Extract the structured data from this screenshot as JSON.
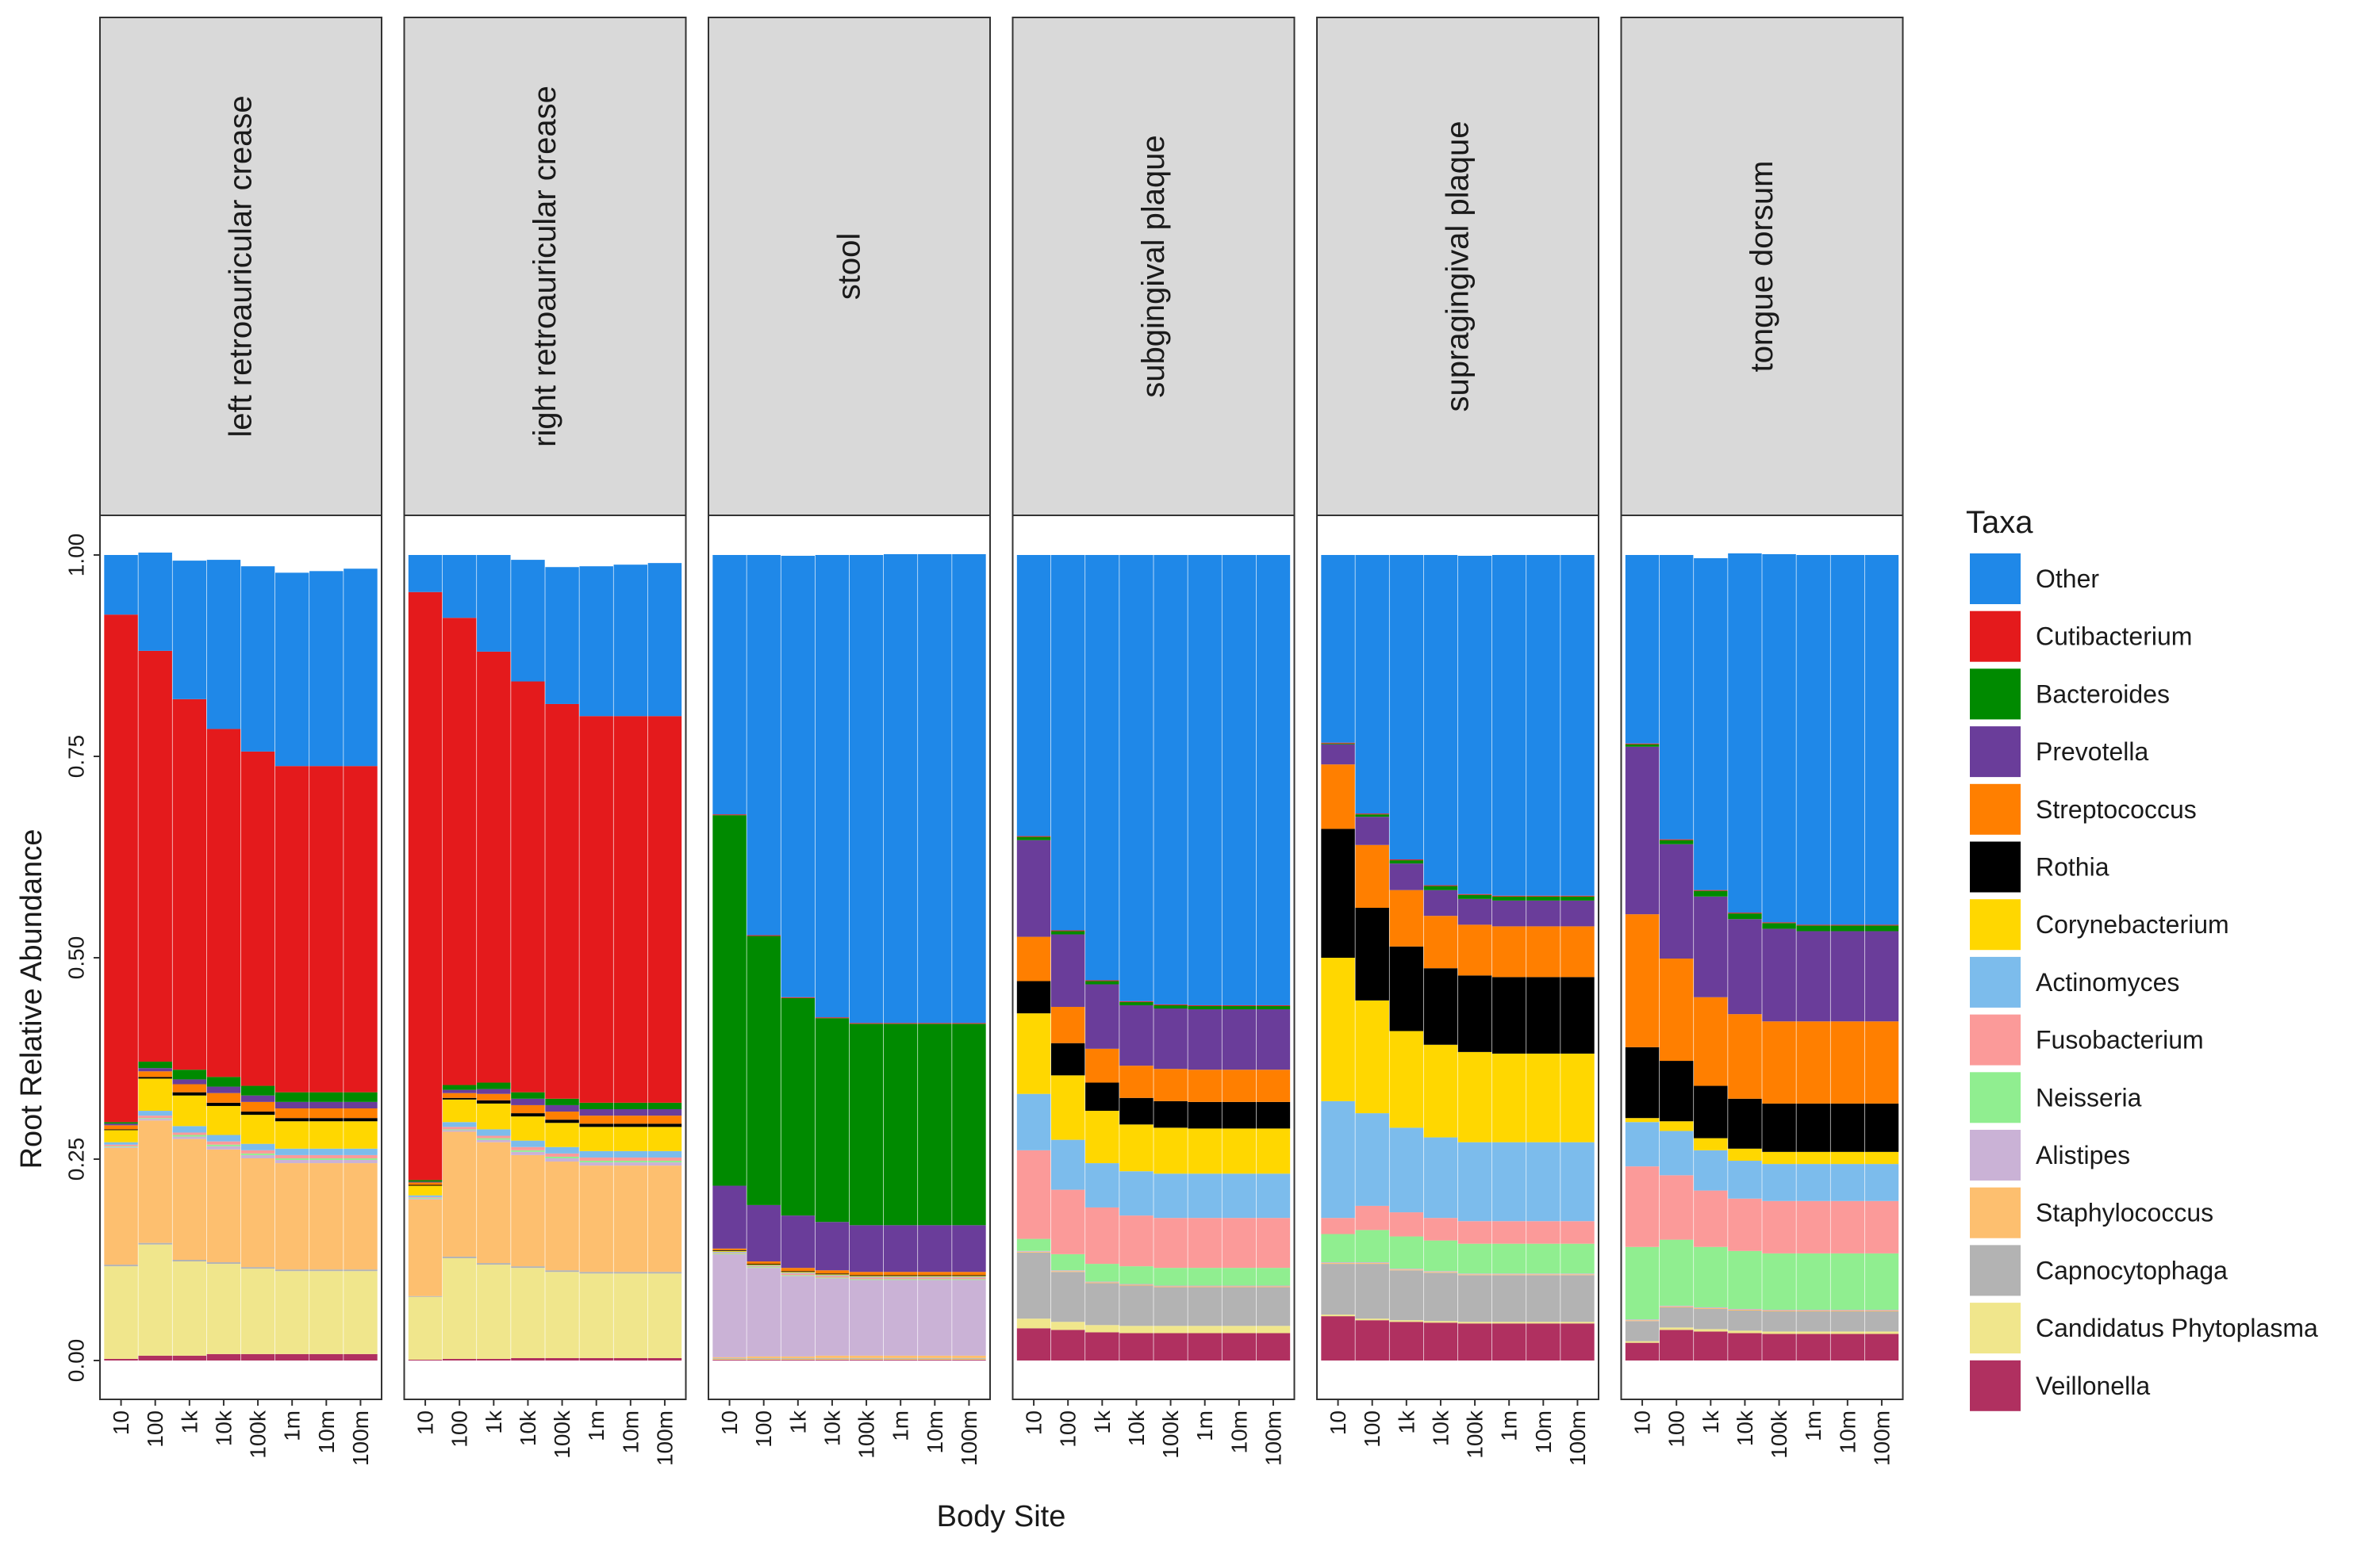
{
  "chart_data": {
    "type": "bar",
    "stacked": true,
    "facet_by": "body site",
    "xlabel": "Body Site",
    "ylabel": "Root Relative Abundance",
    "ylim": [
      0,
      1
    ],
    "y_ticks": [
      "0.00",
      "0.25",
      "0.50",
      "0.75",
      "1.00"
    ],
    "grid": false,
    "legend_title": "Taxa",
    "legend_position": "right",
    "categories": [
      "10",
      "100",
      "1k",
      "10k",
      "100k",
      "1m",
      "10m",
      "100m"
    ],
    "taxa": [
      {
        "name": "Other",
        "color": "#1f88e8"
      },
      {
        "name": "Cutibacterium",
        "color": "#e41a1c"
      },
      {
        "name": "Bacteroides",
        "color": "#008a00"
      },
      {
        "name": "Prevotella",
        "color": "#6a3d9a"
      },
      {
        "name": "Streptococcus",
        "color": "#ff7f00"
      },
      {
        "name": "Rothia",
        "color": "#000000"
      },
      {
        "name": "Corynebacterium",
        "color": "#ffd700"
      },
      {
        "name": "Actinomyces",
        "color": "#7cbcec"
      },
      {
        "name": "Fusobacterium",
        "color": "#fb9a99"
      },
      {
        "name": "Neisseria",
        "color": "#90ee90"
      },
      {
        "name": "Alistipes",
        "color": "#cab2d6"
      },
      {
        "name": "Staphylococcus",
        "color": "#fdbf6f"
      },
      {
        "name": "Capnocytophaga",
        "color": "#b3b3b3"
      },
      {
        "name": "Candidatus Phytoplasma",
        "color": "#f0e68c"
      },
      {
        "name": "Veillonella",
        "color": "#b03060"
      }
    ],
    "stack_order_bottom_to_top": [
      "Veillonella",
      "Candidatus Phytoplasma",
      "Capnocytophaga",
      "Staphylococcus",
      "Alistipes",
      "Neisseria",
      "Fusobacterium",
      "Actinomyces",
      "Corynebacterium",
      "Rothia",
      "Streptococcus",
      "Prevotella",
      "Bacteroides",
      "Cutibacterium",
      "Other"
    ],
    "facets": [
      {
        "title": "left retroauricular crease",
        "series": {
          "Veillonella": [
            0.002,
            0.006,
            0.006,
            0.008,
            0.008,
            0.008,
            0.008,
            0.008
          ],
          "Candidatus Phytoplasma": [
            0.115,
            0.138,
            0.117,
            0.112,
            0.106,
            0.103,
            0.103,
            0.103
          ],
          "Capnocytophaga": [
            0.002,
            0.002,
            0.002,
            0.002,
            0.002,
            0.002,
            0.002,
            0.002
          ],
          "Staphylococcus": [
            0.145,
            0.152,
            0.15,
            0.14,
            0.135,
            0.132,
            0.132,
            0.132
          ],
          "Alistipes": [
            0.001,
            0.002,
            0.003,
            0.004,
            0.004,
            0.004,
            0.004,
            0.004
          ],
          "Neisseria": [
            0.001,
            0.001,
            0.002,
            0.002,
            0.002,
            0.002,
            0.002,
            0.002
          ],
          "Fusobacterium": [
            0.002,
            0.003,
            0.003,
            0.004,
            0.004,
            0.004,
            0.004,
            0.004
          ],
          "Actinomyces": [
            0.003,
            0.006,
            0.008,
            0.008,
            0.008,
            0.008,
            0.008,
            0.008
          ],
          "Corynebacterium": [
            0.015,
            0.04,
            0.038,
            0.036,
            0.036,
            0.034,
            0.034,
            0.034
          ],
          "Rothia": [
            0.001,
            0.002,
            0.004,
            0.004,
            0.004,
            0.004,
            0.004,
            0.004
          ],
          "Streptococcus": [
            0.005,
            0.007,
            0.01,
            0.012,
            0.012,
            0.012,
            0.012,
            0.012
          ],
          "Prevotella": [
            0.002,
            0.004,
            0.006,
            0.008,
            0.008,
            0.008,
            0.008,
            0.008
          ],
          "Bacteroides": [
            0.002,
            0.008,
            0.012,
            0.012,
            0.012,
            0.012,
            0.012,
            0.012
          ],
          "Cutibacterium": [
            0.63,
            0.51,
            0.46,
            0.432,
            0.415,
            0.405,
            0.405,
            0.405
          ],
          "Other": [
            0.074,
            0.122,
            0.172,
            0.21,
            0.23,
            0.24,
            0.242,
            0.245
          ]
        }
      },
      {
        "title": "right retroauricular crease",
        "series": {
          "Veillonella": [
            0.001,
            0.002,
            0.002,
            0.003,
            0.003,
            0.003,
            0.003,
            0.003
          ],
          "Candidatus Phytoplasma": [
            0.078,
            0.125,
            0.117,
            0.112,
            0.107,
            0.105,
            0.105,
            0.105
          ],
          "Capnocytophaga": [
            0.001,
            0.002,
            0.002,
            0.002,
            0.002,
            0.002,
            0.002,
            0.002
          ],
          "Staphylococcus": [
            0.12,
            0.155,
            0.15,
            0.138,
            0.135,
            0.132,
            0.132,
            0.132
          ],
          "Alistipes": [
            0.001,
            0.002,
            0.003,
            0.004,
            0.004,
            0.004,
            0.004,
            0.004
          ],
          "Neisseria": [
            0.001,
            0.001,
            0.002,
            0.002,
            0.002,
            0.002,
            0.002,
            0.002
          ],
          "Fusobacterium": [
            0.001,
            0.003,
            0.003,
            0.004,
            0.004,
            0.004,
            0.004,
            0.004
          ],
          "Actinomyces": [
            0.002,
            0.006,
            0.008,
            0.008,
            0.008,
            0.008,
            0.008,
            0.008
          ],
          "Corynebacterium": [
            0.012,
            0.028,
            0.032,
            0.03,
            0.03,
            0.03,
            0.03,
            0.03
          ],
          "Rothia": [
            0.001,
            0.002,
            0.004,
            0.004,
            0.004,
            0.004,
            0.004,
            0.004
          ],
          "Streptococcus": [
            0.003,
            0.006,
            0.008,
            0.01,
            0.01,
            0.01,
            0.01,
            0.01
          ],
          "Prevotella": [
            0.001,
            0.004,
            0.006,
            0.008,
            0.008,
            0.008,
            0.008,
            0.008
          ],
          "Bacteroides": [
            0.002,
            0.006,
            0.008,
            0.008,
            0.008,
            0.008,
            0.008,
            0.008
          ],
          "Cutibacterium": [
            0.73,
            0.58,
            0.535,
            0.51,
            0.49,
            0.48,
            0.48,
            0.48
          ],
          "Other": [
            0.046,
            0.078,
            0.12,
            0.151,
            0.17,
            0.186,
            0.188,
            0.19
          ]
        }
      },
      {
        "title": "stool",
        "series": {
          "Veillonella": [
            0.001,
            0.001,
            0.001,
            0.001,
            0.001,
            0.001,
            0.001,
            0.001
          ],
          "Candidatus Phytoplasma": [
            0.001,
            0.001,
            0.001,
            0.001,
            0.001,
            0.001,
            0.001,
            0.001
          ],
          "Capnocytophaga": [
            0.001,
            0.001,
            0.001,
            0.001,
            0.001,
            0.001,
            0.001,
            0.001
          ],
          "Staphylococcus": [
            0.001,
            0.002,
            0.002,
            0.003,
            0.003,
            0.003,
            0.003,
            0.003
          ],
          "Alistipes": [
            0.128,
            0.11,
            0.1,
            0.096,
            0.094,
            0.094,
            0.094,
            0.094
          ],
          "Neisseria": [
            0.001,
            0.001,
            0.001,
            0.001,
            0.001,
            0.001,
            0.001,
            0.001
          ],
          "Fusobacterium": [
            0.001,
            0.001,
            0.002,
            0.002,
            0.002,
            0.002,
            0.002,
            0.002
          ],
          "Actinomyces": [
            0.001,
            0.001,
            0.001,
            0.001,
            0.001,
            0.001,
            0.001,
            0.001
          ],
          "Corynebacterium": [
            0.001,
            0.001,
            0.001,
            0.001,
            0.001,
            0.001,
            0.001,
            0.001
          ],
          "Rothia": [
            0.001,
            0.001,
            0.001,
            0.001,
            0.001,
            0.001,
            0.001,
            0.001
          ],
          "Streptococcus": [
            0.002,
            0.003,
            0.004,
            0.004,
            0.004,
            0.004,
            0.004,
            0.004
          ],
          "Prevotella": [
            0.078,
            0.07,
            0.065,
            0.06,
            0.058,
            0.058,
            0.058,
            0.058
          ],
          "Bacteroides": [
            0.46,
            0.334,
            0.27,
            0.253,
            0.25,
            0.25,
            0.25,
            0.25
          ],
          "Cutibacterium": [
            0.001,
            0.001,
            0.001,
            0.001,
            0.001,
            0.001,
            0.001,
            0.001
          ],
          "Other": [
            0.322,
            0.472,
            0.548,
            0.574,
            0.581,
            0.582,
            0.582,
            0.582
          ]
        }
      },
      {
        "title": "subgingival plaque",
        "series": {
          "Veillonella": [
            0.04,
            0.038,
            0.035,
            0.034,
            0.034,
            0.034,
            0.034,
            0.034
          ],
          "Candidatus Phytoplasma": [
            0.012,
            0.01,
            0.009,
            0.009,
            0.009,
            0.009,
            0.009,
            0.009
          ],
          "Capnocytophaga": [
            0.082,
            0.062,
            0.052,
            0.05,
            0.048,
            0.048,
            0.048,
            0.048
          ],
          "Staphylococcus": [
            0.001,
            0.001,
            0.001,
            0.001,
            0.001,
            0.001,
            0.001,
            0.001
          ],
          "Alistipes": [
            0.001,
            0.001,
            0.001,
            0.001,
            0.001,
            0.001,
            0.001,
            0.001
          ],
          "Neisseria": [
            0.015,
            0.02,
            0.022,
            0.022,
            0.022,
            0.022,
            0.022,
            0.022
          ],
          "Fusobacterium": [
            0.11,
            0.08,
            0.07,
            0.063,
            0.062,
            0.062,
            0.062,
            0.062
          ],
          "Actinomyces": [
            0.07,
            0.062,
            0.055,
            0.055,
            0.055,
            0.055,
            0.055,
            0.055
          ],
          "Corynebacterium": [
            0.1,
            0.08,
            0.065,
            0.058,
            0.057,
            0.056,
            0.056,
            0.056
          ],
          "Rothia": [
            0.04,
            0.04,
            0.035,
            0.033,
            0.033,
            0.033,
            0.033,
            0.033
          ],
          "Streptococcus": [
            0.055,
            0.045,
            0.042,
            0.04,
            0.04,
            0.04,
            0.04,
            0.04
          ],
          "Prevotella": [
            0.12,
            0.09,
            0.08,
            0.075,
            0.075,
            0.075,
            0.075,
            0.075
          ],
          "Bacteroides": [
            0.004,
            0.004,
            0.004,
            0.004,
            0.004,
            0.004,
            0.004,
            0.004
          ],
          "Cutibacterium": [
            0.001,
            0.001,
            0.001,
            0.001,
            0.001,
            0.001,
            0.001,
            0.001
          ],
          "Other": [
            0.349,
            0.466,
            0.528,
            0.554,
            0.558,
            0.559,
            0.559,
            0.559
          ]
        }
      },
      {
        "title": "supragingival plaque",
        "series": {
          "Veillonella": [
            0.055,
            0.05,
            0.048,
            0.047,
            0.046,
            0.046,
            0.046,
            0.046
          ],
          "Candidatus Phytoplasma": [
            0.002,
            0.002,
            0.002,
            0.002,
            0.002,
            0.002,
            0.002,
            0.002
          ],
          "Capnocytophaga": [
            0.063,
            0.068,
            0.062,
            0.06,
            0.058,
            0.058,
            0.058,
            0.058
          ],
          "Staphylococcus": [
            0.001,
            0.001,
            0.001,
            0.001,
            0.001,
            0.001,
            0.001,
            0.001
          ],
          "Alistipes": [
            0.001,
            0.001,
            0.001,
            0.001,
            0.001,
            0.001,
            0.001,
            0.001
          ],
          "Neisseria": [
            0.035,
            0.04,
            0.04,
            0.038,
            0.037,
            0.037,
            0.037,
            0.037
          ],
          "Fusobacterium": [
            0.02,
            0.03,
            0.03,
            0.028,
            0.028,
            0.028,
            0.028,
            0.028
          ],
          "Actinomyces": [
            0.145,
            0.115,
            0.105,
            0.1,
            0.098,
            0.098,
            0.098,
            0.098
          ],
          "Corynebacterium": [
            0.178,
            0.14,
            0.12,
            0.115,
            0.112,
            0.11,
            0.11,
            0.11
          ],
          "Rothia": [
            0.16,
            0.115,
            0.105,
            0.095,
            0.095,
            0.095,
            0.095,
            0.095
          ],
          "Streptococcus": [
            0.08,
            0.078,
            0.07,
            0.065,
            0.063,
            0.063,
            0.063,
            0.063
          ],
          "Prevotella": [
            0.025,
            0.035,
            0.033,
            0.032,
            0.032,
            0.032,
            0.032,
            0.032
          ],
          "Bacteroides": [
            0.001,
            0.003,
            0.004,
            0.005,
            0.005,
            0.005,
            0.005,
            0.005
          ],
          "Cutibacterium": [
            0.001,
            0.001,
            0.001,
            0.001,
            0.001,
            0.001,
            0.001,
            0.001
          ],
          "Other": [
            0.233,
            0.321,
            0.378,
            0.41,
            0.42,
            0.423,
            0.423,
            0.423
          ]
        }
      },
      {
        "title": "tongue dorsum",
        "series": {
          "Veillonella": [
            0.022,
            0.038,
            0.036,
            0.034,
            0.033,
            0.033,
            0.033,
            0.033
          ],
          "Candidatus Phytoplasma": [
            0.002,
            0.003,
            0.003,
            0.003,
            0.003,
            0.003,
            0.003,
            0.003
          ],
          "Capnocytophaga": [
            0.025,
            0.025,
            0.025,
            0.025,
            0.025,
            0.025,
            0.025,
            0.025
          ],
          "Staphylococcus": [
            0.001,
            0.001,
            0.001,
            0.001,
            0.001,
            0.001,
            0.001,
            0.001
          ],
          "Alistipes": [
            0.001,
            0.001,
            0.001,
            0.001,
            0.001,
            0.001,
            0.001,
            0.001
          ],
          "Neisseria": [
            0.09,
            0.082,
            0.075,
            0.072,
            0.07,
            0.07,
            0.07,
            0.07
          ],
          "Fusobacterium": [
            0.1,
            0.08,
            0.07,
            0.065,
            0.065,
            0.065,
            0.065,
            0.065
          ],
          "Actinomyces": [
            0.055,
            0.055,
            0.05,
            0.047,
            0.046,
            0.046,
            0.046,
            0.046
          ],
          "Corynebacterium": [
            0.005,
            0.012,
            0.015,
            0.015,
            0.015,
            0.015,
            0.015,
            0.015
          ],
          "Rothia": [
            0.088,
            0.075,
            0.065,
            0.062,
            0.06,
            0.06,
            0.06,
            0.06
          ],
          "Streptococcus": [
            0.165,
            0.127,
            0.11,
            0.105,
            0.102,
            0.102,
            0.102,
            0.102
          ],
          "Prevotella": [
            0.208,
            0.142,
            0.125,
            0.118,
            0.115,
            0.112,
            0.112,
            0.112
          ],
          "Bacteroides": [
            0.003,
            0.005,
            0.007,
            0.007,
            0.007,
            0.007,
            0.007,
            0.007
          ],
          "Cutibacterium": [
            0.001,
            0.001,
            0.001,
            0.001,
            0.001,
            0.001,
            0.001,
            0.001
          ],
          "Other": [
            0.234,
            0.353,
            0.412,
            0.446,
            0.457,
            0.459,
            0.459,
            0.459
          ]
        }
      }
    ]
  }
}
